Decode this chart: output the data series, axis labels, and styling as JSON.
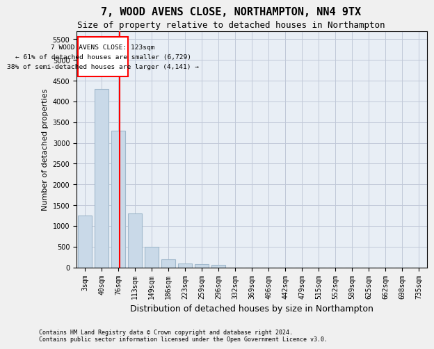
{
  "title": "7, WOOD AVENS CLOSE, NORTHAMPTON, NN4 9TX",
  "subtitle": "Size of property relative to detached houses in Northampton",
  "xlabel": "Distribution of detached houses by size in Northampton",
  "ylabel": "Number of detached properties",
  "footnote1": "Contains HM Land Registry data © Crown copyright and database right 2024.",
  "footnote2": "Contains public sector information licensed under the Open Government Licence v3.0.",
  "bin_labels": [
    "3sqm",
    "40sqm",
    "76sqm",
    "113sqm",
    "149sqm",
    "186sqm",
    "223sqm",
    "259sqm",
    "296sqm",
    "332sqm",
    "369sqm",
    "406sqm",
    "442sqm",
    "479sqm",
    "515sqm",
    "552sqm",
    "589sqm",
    "625sqm",
    "662sqm",
    "698sqm",
    "735sqm"
  ],
  "bar_values": [
    1250,
    4300,
    3300,
    1300,
    500,
    200,
    100,
    80,
    60,
    0,
    0,
    0,
    0,
    0,
    0,
    0,
    0,
    0,
    0,
    0,
    0
  ],
  "bar_color": "#c9d9e8",
  "bar_edge_color": "#a0b8cc",
  "grid_color": "#c0c8d8",
  "property_line_x": 2.08,
  "property_line_color": "red",
  "annotation_text": "7 WOOD AVENS CLOSE: 123sqm\n← 61% of detached houses are smaller (6,729)\n38% of semi-detached houses are larger (4,141) →",
  "ylim": [
    0,
    5700
  ],
  "yticks": [
    0,
    500,
    1000,
    1500,
    2000,
    2500,
    3000,
    3500,
    4000,
    4500,
    5000,
    5500
  ],
  "background_color": "#e8eef5",
  "fig_background_color": "#f0f0f0",
  "title_fontsize": 11,
  "subtitle_fontsize": 9,
  "xlabel_fontsize": 9,
  "ylabel_fontsize": 8,
  "tick_fontsize": 7,
  "footnote_fontsize": 6
}
